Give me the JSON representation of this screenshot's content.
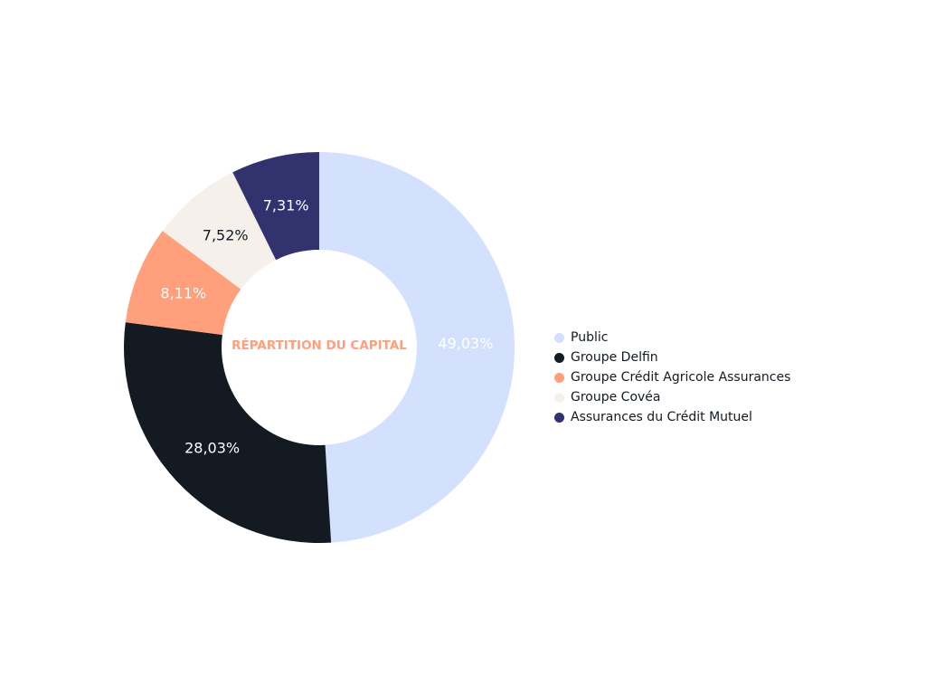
{
  "chart_data": {
    "type": "pie",
    "variant": "donut",
    "title": "RÉPARTITION DU CAPITAL",
    "categories": [
      "Public",
      "Groupe Delfin",
      "Groupe Crédit Agricole Assurances",
      "Groupe Covéa",
      "Assurances du Crédit Mutuel"
    ],
    "values": [
      49.03,
      28.03,
      8.11,
      7.52,
      7.31
    ],
    "data_labels": [
      "49,03%",
      "28,03%",
      "8,11%",
      "7,52%",
      "7,31%"
    ],
    "colors": [
      "#d3e0fe",
      "#131a22",
      "#ff9f7b",
      "#f5f0ea",
      "#32336e"
    ],
    "label_colors": [
      "#ffffff",
      "#ffffff",
      "#ffffff",
      "#131a22",
      "#ffffff"
    ],
    "legend_position": "right"
  }
}
